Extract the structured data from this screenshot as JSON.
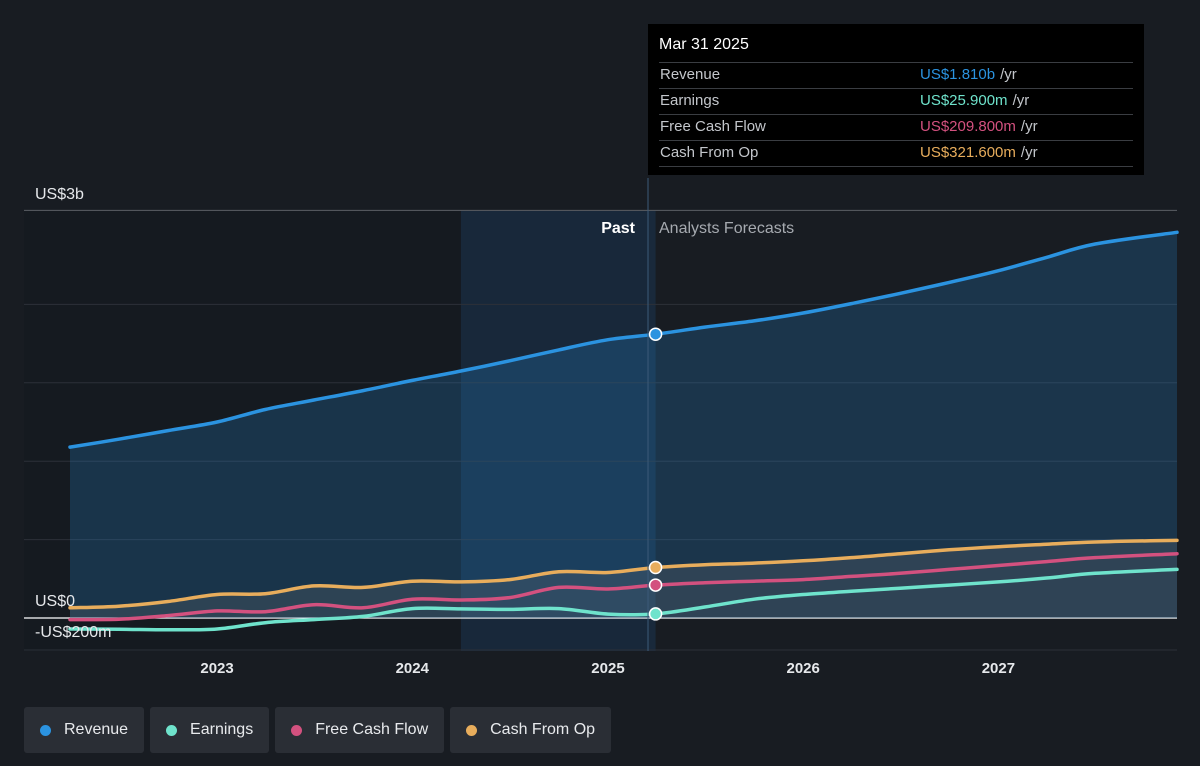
{
  "colors": {
    "revenue": "#2b93e0",
    "earnings": "#6fe3cc",
    "free_cash_flow": "#d3517f",
    "cash_from_op": "#e8ad5c",
    "background": "#181c22"
  },
  "tooltip": {
    "date": "Mar 31 2025",
    "rows": [
      {
        "label": "Revenue",
        "value": "US$1.810b",
        "unit": "/yr",
        "color": "#2b93e0"
      },
      {
        "label": "Earnings",
        "value": "US$25.900m",
        "unit": "/yr",
        "color": "#6fe3cc"
      },
      {
        "label": "Free Cash Flow",
        "value": "US$209.800m",
        "unit": "/yr",
        "color": "#d3517f"
      },
      {
        "label": "Cash From Op",
        "value": "US$321.600m",
        "unit": "/yr",
        "color": "#e8ad5c"
      }
    ]
  },
  "regions": {
    "past": "Past",
    "forecast": "Analysts Forecasts"
  },
  "legend": [
    {
      "label": "Revenue",
      "color": "#2b93e0"
    },
    {
      "label": "Earnings",
      "color": "#6fe3cc"
    },
    {
      "label": "Free Cash Flow",
      "color": "#d3517f"
    },
    {
      "label": "Cash From Op",
      "color": "#e8ad5c"
    }
  ],
  "chart_data": {
    "type": "line",
    "y_tick_labels": [
      "US$3b",
      "US$0",
      "-US$200m"
    ],
    "ylim": [
      -200,
      2600
    ],
    "y_unit": "US$m",
    "x_ticks": [
      "2023",
      "2024",
      "2025",
      "2026",
      "2027"
    ],
    "x_range": [
      "2022-04",
      "2027-12"
    ],
    "past_end": "2025-03-31",
    "highlight_start": "2024-04",
    "series": [
      {
        "name": "Revenue",
        "points": [
          [
            "2022-04",
            1090
          ],
          [
            "2022-07",
            1140
          ],
          [
            "2022-10",
            1195
          ],
          [
            "2023-01",
            1250
          ],
          [
            "2023-04",
            1330
          ],
          [
            "2023-07",
            1390
          ],
          [
            "2023-10",
            1450
          ],
          [
            "2024-01",
            1515
          ],
          [
            "2024-04",
            1575
          ],
          [
            "2024-07",
            1640
          ],
          [
            "2024-10",
            1710
          ],
          [
            "2025-01",
            1775
          ],
          [
            "2025-03-31",
            1810
          ],
          [
            "2025-07",
            1855
          ],
          [
            "2025-10",
            1895
          ],
          [
            "2026-01",
            1945
          ],
          [
            "2026-04",
            2005
          ],
          [
            "2026-07",
            2070
          ],
          [
            "2026-10",
            2140
          ],
          [
            "2027-01",
            2215
          ],
          [
            "2027-04",
            2300
          ],
          [
            "2027-07",
            2385
          ],
          [
            "2027-12",
            2460
          ]
        ]
      },
      {
        "name": "Earnings",
        "points": [
          [
            "2022-04",
            -70
          ],
          [
            "2022-07",
            -72
          ],
          [
            "2022-10",
            -75
          ],
          [
            "2023-01",
            -70
          ],
          [
            "2023-04",
            -30
          ],
          [
            "2023-07",
            -10
          ],
          [
            "2023-10",
            10
          ],
          [
            "2024-01",
            60
          ],
          [
            "2024-04",
            58
          ],
          [
            "2024-07",
            55
          ],
          [
            "2024-10",
            60
          ],
          [
            "2025-01",
            25
          ],
          [
            "2025-03-31",
            26
          ],
          [
            "2025-07",
            70
          ],
          [
            "2025-10",
            120
          ],
          [
            "2026-01",
            150
          ],
          [
            "2026-04",
            170
          ],
          [
            "2026-07",
            190
          ],
          [
            "2026-10",
            210
          ],
          [
            "2027-01",
            230
          ],
          [
            "2027-04",
            255
          ],
          [
            "2027-07",
            285
          ],
          [
            "2027-12",
            310
          ]
        ]
      },
      {
        "name": "Free Cash Flow",
        "points": [
          [
            "2022-04",
            -10
          ],
          [
            "2022-07",
            -8
          ],
          [
            "2022-10",
            15
          ],
          [
            "2023-01",
            45
          ],
          [
            "2023-04",
            40
          ],
          [
            "2023-07",
            85
          ],
          [
            "2023-10",
            65
          ],
          [
            "2024-01",
            120
          ],
          [
            "2024-04",
            115
          ],
          [
            "2024-07",
            130
          ],
          [
            "2024-10",
            195
          ],
          [
            "2025-01",
            185
          ],
          [
            "2025-03-31",
            210
          ],
          [
            "2025-07",
            225
          ],
          [
            "2025-10",
            235
          ],
          [
            "2026-01",
            245
          ],
          [
            "2026-04",
            265
          ],
          [
            "2026-07",
            285
          ],
          [
            "2026-10",
            310
          ],
          [
            "2027-01",
            335
          ],
          [
            "2027-04",
            360
          ],
          [
            "2027-07",
            385
          ],
          [
            "2027-12",
            410
          ]
        ]
      },
      {
        "name": "Cash From Op",
        "points": [
          [
            "2022-04",
            65
          ],
          [
            "2022-07",
            75
          ],
          [
            "2022-10",
            105
          ],
          [
            "2023-01",
            150
          ],
          [
            "2023-04",
            155
          ],
          [
            "2023-07",
            205
          ],
          [
            "2023-10",
            195
          ],
          [
            "2024-01",
            235
          ],
          [
            "2024-04",
            230
          ],
          [
            "2024-07",
            245
          ],
          [
            "2024-10",
            295
          ],
          [
            "2025-01",
            290
          ],
          [
            "2025-03-31",
            322
          ],
          [
            "2025-07",
            340
          ],
          [
            "2025-10",
            350
          ],
          [
            "2026-01",
            365
          ],
          [
            "2026-04",
            385
          ],
          [
            "2026-07",
            410
          ],
          [
            "2026-10",
            435
          ],
          [
            "2027-01",
            455
          ],
          [
            "2027-04",
            470
          ],
          [
            "2027-07",
            485
          ],
          [
            "2027-12",
            495
          ]
        ]
      }
    ]
  }
}
